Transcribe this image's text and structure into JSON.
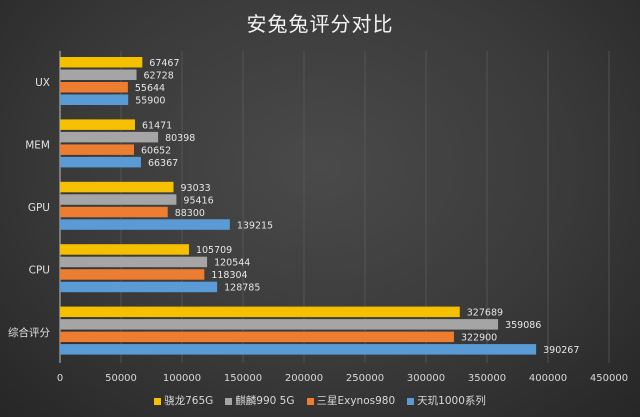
{
  "chart_data": {
    "type": "bar",
    "orientation": "horizontal",
    "title": "安兔兔评分对比",
    "categories": [
      "UX",
      "MEM",
      "GPU",
      "CPU",
      "综合评分"
    ],
    "series": [
      {
        "name": "骁龙765G",
        "color": "#f5c000",
        "values": [
          67467,
          61471,
          93033,
          105709,
          327689
        ]
      },
      {
        "name": "麒麟990 5G",
        "color": "#a5a5a5",
        "values": [
          62728,
          80398,
          95416,
          120544,
          359086
        ]
      },
      {
        "name": "三星Exynos980",
        "color": "#ed7d31",
        "values": [
          55644,
          60652,
          88300,
          118304,
          322900
        ]
      },
      {
        "name": "天玑1000系列",
        "color": "#5b9bd5",
        "values": [
          55900,
          66367,
          139215,
          128785,
          390267
        ]
      }
    ],
    "xlim": [
      0,
      450000
    ],
    "xticks": [
      "0",
      "50000",
      "100000",
      "150000",
      "200000",
      "250000",
      "300000",
      "350000",
      "400000",
      "450000"
    ],
    "grid": true,
    "legend_position": "bottom"
  }
}
